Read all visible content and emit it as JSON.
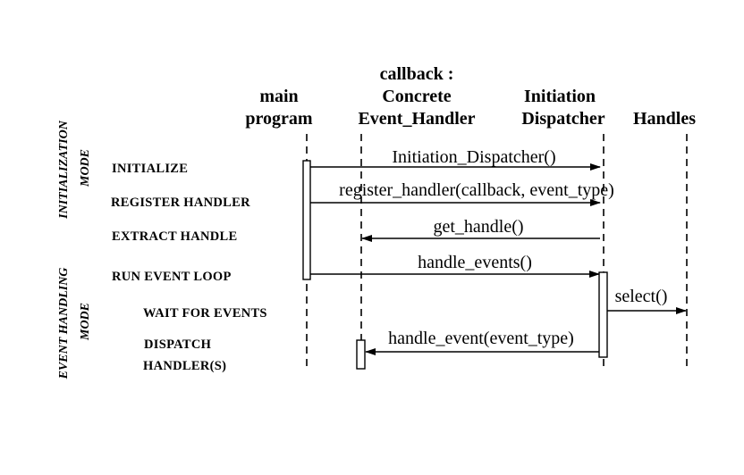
{
  "participants": {
    "main_program": [
      "main",
      "program"
    ],
    "callback": [
      "callback :",
      "Concrete",
      "Event_Handler"
    ],
    "initiation_dispatcher": [
      "Initiation",
      "Dispatcher"
    ],
    "handles": "Handles"
  },
  "modes": {
    "initialization": [
      "INITIALIZATION",
      "MODE"
    ],
    "event_handling": [
      "EVENT HANDLING",
      "MODE"
    ]
  },
  "steps": {
    "initialize": "INITIALIZE",
    "register_handler": "REGISTER  HANDLER",
    "extract_handle": "EXTRACT  HANDLE",
    "run_event_loop": "RUN  EVENT  LOOP",
    "wait_for_events": "WAIT  FOR  EVENTS",
    "dispatch_handlers": [
      "DISPATCH",
      "HANDLER(S)"
    ]
  },
  "messages": {
    "initiation_dispatcher_ctor": "Initiation_Dispatcher()",
    "register_handler": "register_handler(callback, event_type)",
    "get_handle": "get_handle()",
    "handle_events": "handle_events()",
    "select": "select()",
    "handle_event": "handle_event(event_type)"
  }
}
